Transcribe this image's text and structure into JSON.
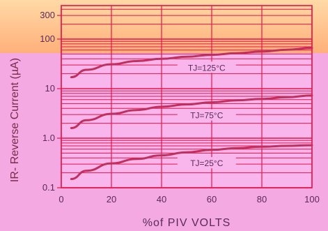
{
  "chart_data": {
    "type": "line",
    "title": "",
    "xlabel": "%of PIV VOLTS",
    "ylabel": "IR- Reverse Current (µA)",
    "x_ticks": [
      "0",
      "20",
      "40",
      "60",
      "80",
      "100"
    ],
    "y_ticks": [
      "0.1",
      "1.0",
      "10",
      "100",
      "300"
    ],
    "xlim": [
      0,
      100
    ],
    "ylim": [
      0.1,
      400
    ],
    "y_scale": "log",
    "grid": true,
    "series": [
      {
        "name": "TJ=25°C",
        "x": [
          4,
          10,
          20,
          30,
          40,
          50,
          60,
          70,
          80,
          90,
          100
        ],
        "y": [
          0.15,
          0.22,
          0.31,
          0.38,
          0.45,
          0.52,
          0.58,
          0.63,
          0.67,
          0.7,
          0.72
        ]
      },
      {
        "name": "TJ=75°C",
        "x": [
          4,
          10,
          20,
          30,
          40,
          50,
          60,
          70,
          80,
          90,
          100
        ],
        "y": [
          1.6,
          2.3,
          3.1,
          3.7,
          4.3,
          4.8,
          5.3,
          5.8,
          6.2,
          6.7,
          7.3
        ]
      },
      {
        "name": "TJ=125°C",
        "x": [
          4,
          10,
          20,
          30,
          40,
          50,
          60,
          70,
          80,
          90,
          100
        ],
        "y": [
          17,
          24,
          31,
          36,
          40,
          44,
          48,
          52,
          56,
          61,
          66
        ]
      }
    ]
  }
}
